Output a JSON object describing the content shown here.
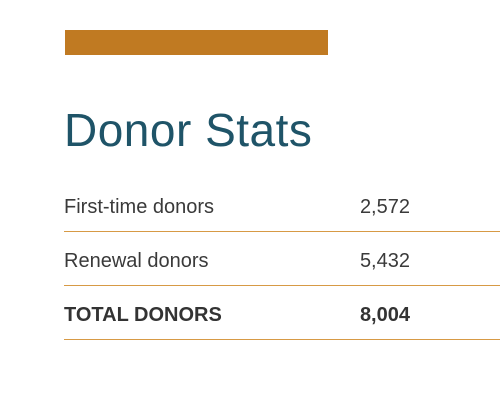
{
  "heading": {
    "title": "Donor Stats"
  },
  "stats": [
    {
      "label": "First-time donors",
      "value": "2,572"
    },
    {
      "label": "Renewal donors",
      "value": "5,432"
    },
    {
      "label": "TOTAL DONORS",
      "value": "8,004"
    }
  ],
  "colors": {
    "accent": "#c07a22",
    "title": "#1f5468",
    "divider": "#d79a45",
    "text": "#3a3a3a"
  }
}
